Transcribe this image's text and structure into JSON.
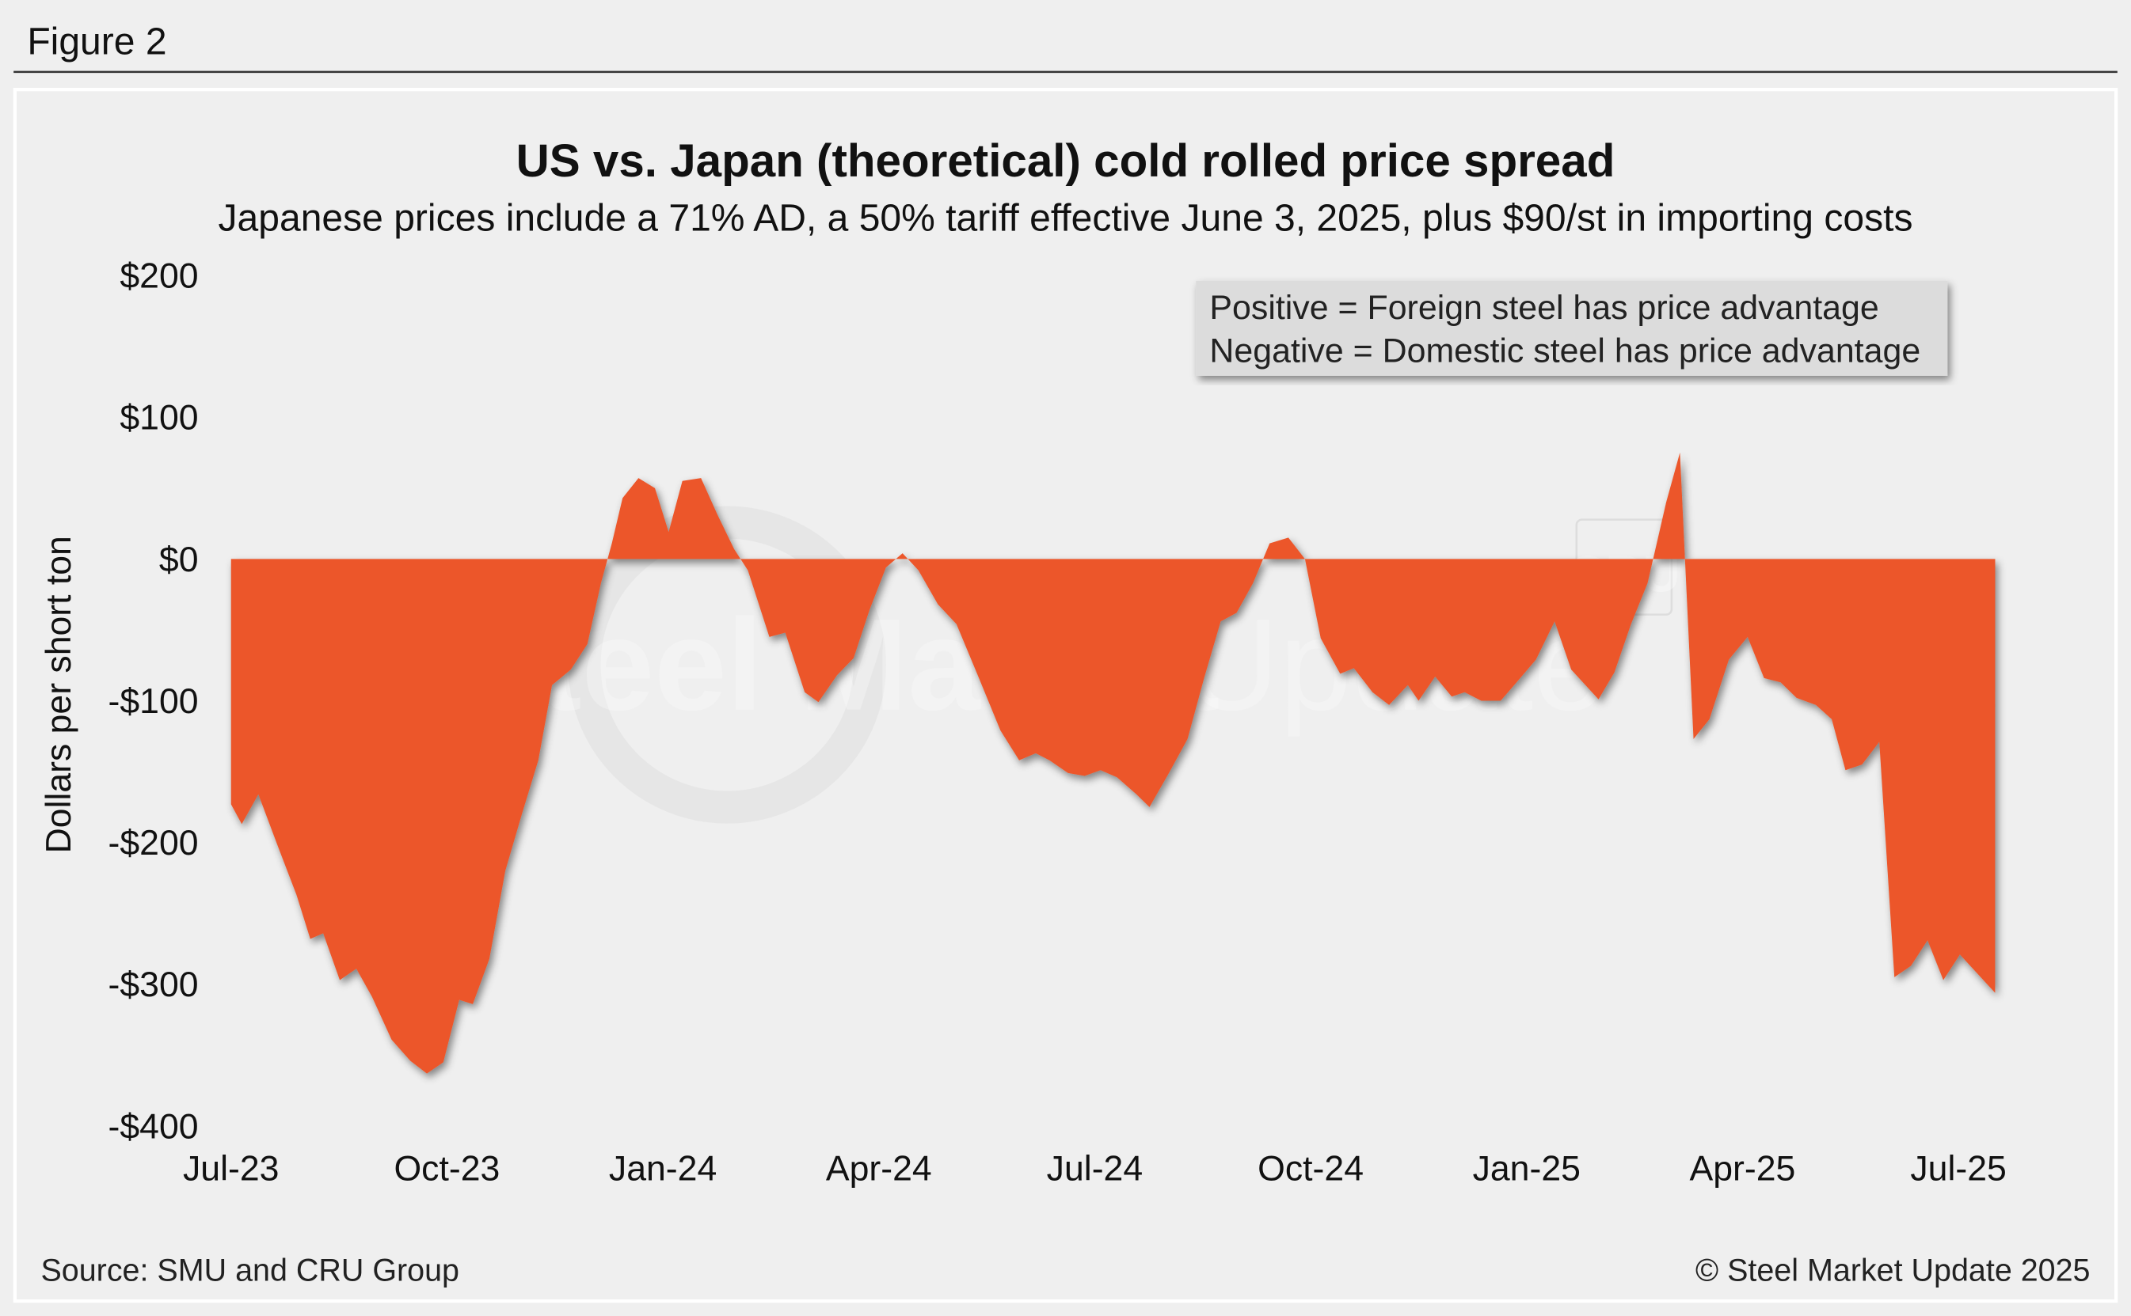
{
  "header": {
    "figure_label": "Figure 2"
  },
  "footer": {
    "source": "Source: SMU and CRU Group",
    "copyright": "© Steel Market Update 2025"
  },
  "watermark": {
    "text_bold": "Steel Market",
    "text_light": "Update",
    "cru": "CRU"
  },
  "legend": {
    "line1": "Positive = Foreign steel has price advantage",
    "line2": "Negative = Domestic steel has price advantage"
  },
  "colors": {
    "area": "#ec572a",
    "background": "#efefef",
    "legend_box": "#dcdcdc"
  },
  "chart_data": {
    "type": "area",
    "title": "US vs. Japan (theoretical) cold rolled price spread",
    "subtitle": "Japanese prices include a 71% AD, a 50% tariff effective June 3, 2025, plus $90/st in importing costs",
    "xlabel": "",
    "ylabel": "Dollars per short ton",
    "ylim": [
      -400,
      200
    ],
    "yticks": [
      200,
      100,
      0,
      -100,
      -200,
      -300,
      -400
    ],
    "ytick_labels": [
      "$200",
      "$100",
      "$0",
      "-$100",
      "-$200",
      "-$300",
      "-$400"
    ],
    "x_unit": "months since Jul-23",
    "xlim": [
      0,
      24.5
    ],
    "xticks": [
      0,
      3,
      6,
      9,
      12,
      15,
      18,
      21,
      24
    ],
    "xtick_labels": [
      "Jul-23",
      "Oct-23",
      "Jan-24",
      "Apr-24",
      "Jul-24",
      "Oct-24",
      "Jan-25",
      "Apr-25",
      "Jul-25"
    ],
    "grid": false,
    "legend_placement": "top-right",
    "points": [
      [
        0,
        -173
      ],
      [
        0.15,
        -187
      ],
      [
        0.38,
        -166
      ],
      [
        0.66,
        -204
      ],
      [
        0.91,
        -237
      ],
      [
        1.1,
        -268
      ],
      [
        1.28,
        -264
      ],
      [
        1.51,
        -297
      ],
      [
        1.74,
        -289
      ],
      [
        1.96,
        -309
      ],
      [
        2.23,
        -339
      ],
      [
        2.49,
        -354
      ],
      [
        2.72,
        -363
      ],
      [
        2.95,
        -355
      ],
      [
        3.17,
        -311
      ],
      [
        3.36,
        -314
      ],
      [
        3.59,
        -282
      ],
      [
        3.81,
        -220
      ],
      [
        4.04,
        -180
      ],
      [
        4.27,
        -142
      ],
      [
        4.46,
        -89
      ],
      [
        4.72,
        -78
      ],
      [
        4.95,
        -60
      ],
      [
        5.14,
        -17
      ],
      [
        5.29,
        11
      ],
      [
        5.44,
        43
      ],
      [
        5.66,
        57
      ],
      [
        5.89,
        50
      ],
      [
        6.08,
        19
      ],
      [
        6.27,
        55
      ],
      [
        6.53,
        57
      ],
      [
        6.76,
        31
      ],
      [
        6.99,
        7
      ],
      [
        7.18,
        -8
      ],
      [
        7.48,
        -55
      ],
      [
        7.7,
        -52
      ],
      [
        7.97,
        -94
      ],
      [
        8.16,
        -101
      ],
      [
        8.42,
        -82
      ],
      [
        8.65,
        -70
      ],
      [
        8.87,
        -36
      ],
      [
        9.1,
        -6
      ],
      [
        9.33,
        4
      ],
      [
        9.55,
        -8
      ],
      [
        9.82,
        -32
      ],
      [
        10.08,
        -46
      ],
      [
        10.39,
        -84
      ],
      [
        10.69,
        -121
      ],
      [
        10.95,
        -142
      ],
      [
        11.18,
        -137
      ],
      [
        11.37,
        -142
      ],
      [
        11.63,
        -151
      ],
      [
        11.86,
        -153
      ],
      [
        12.08,
        -149
      ],
      [
        12.31,
        -154
      ],
      [
        12.58,
        -166
      ],
      [
        12.76,
        -175
      ],
      [
        13.03,
        -151
      ],
      [
        13.29,
        -127
      ],
      [
        13.52,
        -84
      ],
      [
        13.75,
        -44
      ],
      [
        13.97,
        -38
      ],
      [
        14.2,
        -17
      ],
      [
        14.43,
        11
      ],
      [
        14.69,
        15
      ],
      [
        14.92,
        0
      ],
      [
        15.14,
        -56
      ],
      [
        15.41,
        -81
      ],
      [
        15.6,
        -77
      ],
      [
        15.86,
        -94
      ],
      [
        16.09,
        -103
      ],
      [
        16.35,
        -89
      ],
      [
        16.5,
        -100
      ],
      [
        16.73,
        -83
      ],
      [
        16.96,
        -97
      ],
      [
        17.14,
        -94
      ],
      [
        17.37,
        -100
      ],
      [
        17.64,
        -100
      ],
      [
        17.86,
        -87
      ],
      [
        18.13,
        -71
      ],
      [
        18.39,
        -44
      ],
      [
        18.62,
        -78
      ],
      [
        19.0,
        -99
      ],
      [
        19.22,
        -80
      ],
      [
        19.45,
        -46
      ],
      [
        19.68,
        -17
      ],
      [
        19.94,
        40
      ],
      [
        20.13,
        75
      ],
      [
        20.32,
        -127
      ],
      [
        20.54,
        -113
      ],
      [
        20.81,
        -71
      ],
      [
        21.07,
        -55
      ],
      [
        21.3,
        -84
      ],
      [
        21.53,
        -87
      ],
      [
        21.75,
        -98
      ],
      [
        22.02,
        -103
      ],
      [
        22.24,
        -113
      ],
      [
        22.43,
        -149
      ],
      [
        22.66,
        -145
      ],
      [
        22.9,
        -129
      ],
      [
        23.11,
        -295
      ],
      [
        23.34,
        -287
      ],
      [
        23.57,
        -269
      ],
      [
        23.79,
        -297
      ],
      [
        24.02,
        -279
      ],
      [
        24.51,
        -306
      ]
    ]
  }
}
